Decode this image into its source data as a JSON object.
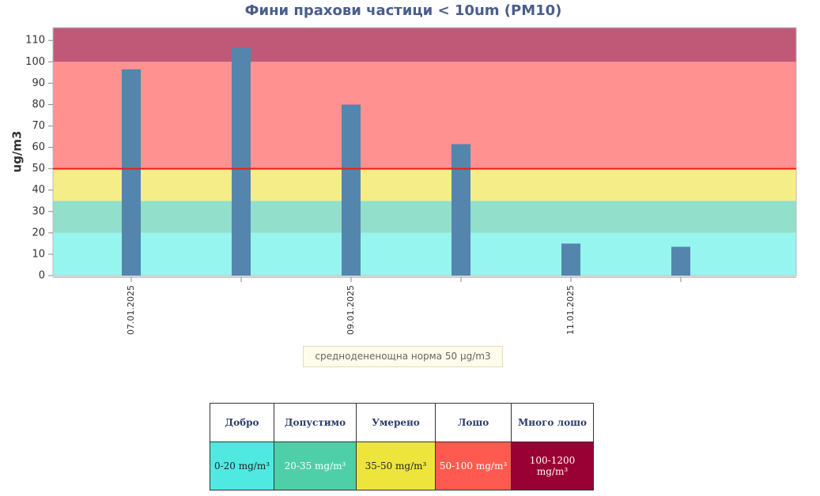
{
  "chart_data": {
    "type": "bar",
    "title": "Фини прахови частици < 10um (PM10)",
    "ylabel": "ug/m3",
    "categories": [
      "07.01.2025",
      null,
      "09.01.2025",
      null,
      "11.01.2025",
      null
    ],
    "values": [
      96.5,
      106.5,
      80,
      61.5,
      15,
      13.5
    ],
    "color": "#5485ad",
    "ylim": [
      0,
      116
    ],
    "yticks": [
      0,
      10,
      20,
      30,
      40,
      50,
      60,
      70,
      80,
      90,
      100,
      110
    ],
    "bands": [
      {
        "from": 0,
        "to": 20,
        "color": "#97f5f0"
      },
      {
        "from": 20,
        "to": 35,
        "color": "#92dfcb"
      },
      {
        "from": 35,
        "to": 50,
        "color": "#f5ee88"
      },
      {
        "from": 50,
        "to": 100,
        "color": "#ff9190"
      },
      {
        "from": 100,
        "to": 116,
        "color": "#c05878"
      }
    ],
    "threshold": 50,
    "threshold_color": "#ee1c1c"
  },
  "legend": "среднодененощна норма 50 µg/m3",
  "table": {
    "levels": [
      {
        "name": "Добро",
        "range": "0-20 mg/m³",
        "color": "#4fe9e1",
        "text_color": "#222"
      },
      {
        "name": "Допустимо",
        "range": "20-35 mg/m³",
        "color": "#4ecfa7",
        "text_color": "#fff"
      },
      {
        "name": "Умерено",
        "range": "35-50 mg/m³",
        "color": "#ede53c",
        "text_color": "#222"
      },
      {
        "name": "Лошо",
        "range": "50-100 mg/m³",
        "color": "#ff5a50",
        "text_color": "#fff"
      },
      {
        "name": "Много лошо",
        "range": "100-1200 mg/m³",
        "color": "#990033",
        "text_color": "#fff"
      }
    ]
  }
}
